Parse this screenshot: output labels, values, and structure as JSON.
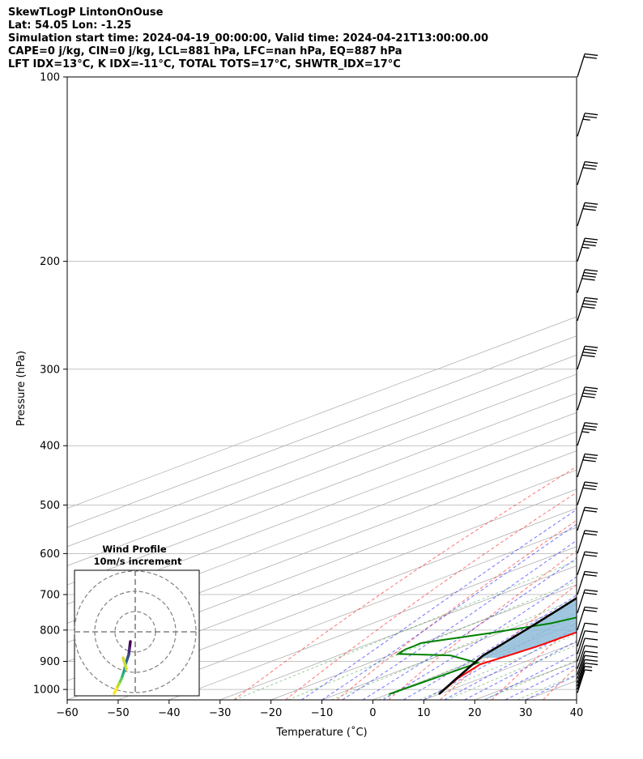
{
  "header": {
    "line1": "SkewTLogP LintonOnOuse",
    "line2": "Lat: 54.05   Lon: -1.25",
    "line3": "Simulation start time: 2024-04-19_00:00:00, Valid time: 2024-04-21T13:00:00.00",
    "line4": "CAPE=0 j/kg, CIN=0 j/kg, LCL=881 hPa, LFC=nan hPa, EQ=887 hPa",
    "line5": "LFT IDX=13°C, K IDX=-11°C, TOTAL TOTS=17°C, SHWTR_IDX=17°C"
  },
  "chart_data": {
    "type": "skewt",
    "xlabel": "Temperature (˚C)",
    "ylabel": "Pressure (hPa)",
    "x_ticks": [
      "−60",
      "−50",
      "−40",
      "−30",
      "−20",
      "−10",
      "0",
      "10",
      "20",
      "30",
      "40"
    ],
    "x_tick_values": [
      -60,
      -50,
      -40,
      -30,
      -20,
      -10,
      0,
      10,
      20,
      30,
      40
    ],
    "p_ticks": [
      100,
      200,
      300,
      400,
      500,
      600,
      700,
      800,
      900,
      1000
    ],
    "xlim": [
      -60,
      40
    ],
    "plim": [
      1040,
      100
    ],
    "grid": true,
    "dry_adiabat_thetas": [
      -30,
      -20,
      -10,
      0,
      10,
      20,
      30,
      40,
      50,
      60,
      70,
      80,
      90,
      100,
      110,
      120,
      130,
      140,
      150,
      160,
      170
    ],
    "moist_adiabat_starts": [
      -14,
      -10,
      -6,
      -2,
      2,
      6,
      10,
      14,
      18,
      22,
      26,
      30
    ],
    "mixing_ratios": [
      0.4,
      1,
      2,
      4,
      7,
      10,
      16,
      24
    ],
    "temperature": {
      "color": "#ff0000",
      "p": [
        1018,
        960,
        910,
        880,
        850,
        800,
        750,
        700,
        650,
        600,
        550,
        500,
        450,
        400,
        360,
        330,
        300,
        270,
        250,
        240,
        225,
        210,
        195,
        180,
        165,
        150,
        140,
        130,
        120,
        110,
        100
      ],
      "t": [
        10,
        5.5,
        2.5,
        3.5,
        4.3,
        4.8,
        4.6,
        4.0,
        2.8,
        1.3,
        -0.4,
        -2.5,
        -4.8,
        -7.0,
        -9.0,
        -10.8,
        -12.5,
        -14.8,
        -16.0,
        -15.0,
        -15.2,
        -16.5,
        -14.5,
        -13.8,
        -13.2,
        -12.8,
        -12.0,
        -11.8,
        -12.5,
        -12.0,
        -11.6
      ]
    },
    "dewpoint": {
      "color": "#008000",
      "p": [
        1018,
        960,
        905,
        880,
        875,
        860,
        850,
        840,
        810,
        780,
        750,
        700,
        650,
        600,
        550,
        500,
        450,
        400,
        380,
        350,
        320,
        310,
        280,
        250,
        230,
        200,
        185,
        175,
        165,
        150,
        130,
        100
      ],
      "t": [
        0.2,
        0.8,
        1.3,
        -8,
        -19,
        -20,
        -20,
        -20.2,
        -12,
        -5,
        -1.5,
        0.4,
        -0.2,
        -1.5,
        -3.5,
        -6.5,
        -11,
        -18.5,
        -22.5,
        -24.5,
        -24.5,
        -21.5,
        -24.5,
        -28.5,
        -32.5,
        -32.5,
        -36.5,
        -40.5,
        -41.5,
        -39.5,
        -37.5,
        -32
      ]
    },
    "parcel": {
      "color": "#000000",
      "p": [
        1018,
        881,
        850,
        800,
        750,
        700,
        650,
        600,
        550,
        500,
        450,
        400,
        350,
        300,
        250,
        200,
        150,
        100
      ],
      "t_surface": 10,
      "t_lcl": 1.2
    },
    "shading": {
      "color": "#8fbcd9",
      "description_label": ""
    },
    "wind_barbs": {
      "p": [
        1013,
        1000,
        988,
        975,
        960,
        945,
        925,
        900,
        875,
        850,
        800,
        750,
        700,
        650,
        600,
        550,
        500,
        450,
        400,
        350,
        300,
        250,
        225,
        200,
        175,
        150,
        125,
        100
      ],
      "speed_kt": [
        5,
        5,
        10,
        10,
        10,
        10,
        10,
        10,
        10,
        10,
        20,
        20,
        20,
        20,
        20,
        20,
        30,
        30,
        35,
        40,
        40,
        40,
        40,
        35,
        30,
        30,
        25,
        20
      ]
    },
    "inset": {
      "title": "Wind Profile",
      "subtitle": "10m/s increment",
      "rings": 3
    }
  }
}
